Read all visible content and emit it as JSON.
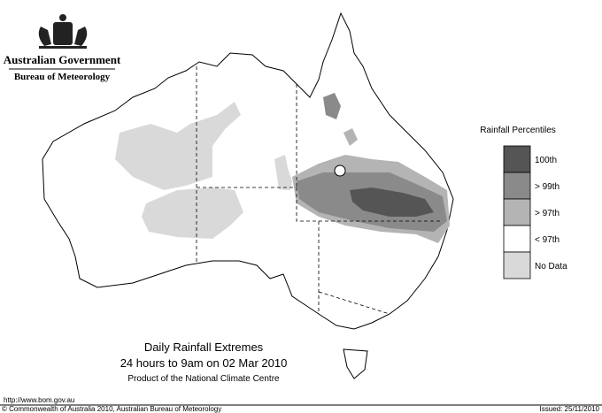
{
  "header": {
    "agency": "Australian Government",
    "bureau": "Bureau of Meteorology"
  },
  "legend": {
    "title": "Rainfall Percentiles",
    "entries": [
      {
        "label": "100th",
        "color": "#555555"
      },
      {
        "label": "> 99th",
        "color": "#8a8a8a"
      },
      {
        "label": "> 97th",
        "color": "#b4b4b4"
      },
      {
        "label": "< 97th",
        "color": "#ffffff"
      },
      {
        "label": "No Data",
        "color": "#d9d9d9"
      }
    ]
  },
  "caption": {
    "title": "Daily Rainfall Extremes",
    "period": "24 hours to 9am on 02 Mar 2010",
    "product": "Product of the National Climate Centre"
  },
  "footer": {
    "url": "http://www.bom.gov.au",
    "copyright": "© Commonwealth of Australia 2010, Australian Bureau of Meteorology",
    "issued": "Issued: 25/11/2010"
  }
}
